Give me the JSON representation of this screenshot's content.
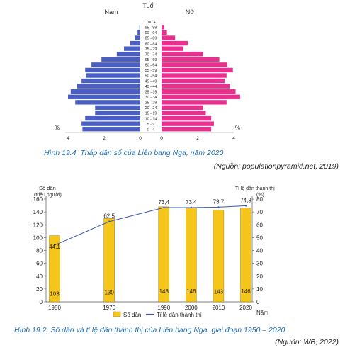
{
  "chart_data": [
    {
      "type": "bar",
      "subtype": "population-pyramid",
      "header_left": "Nam",
      "header_center": "Tuổi",
      "header_right": "Nữ",
      "unit_left": "%",
      "unit_right": "%",
      "categories": [
        "100+",
        "95-99",
        "90-94",
        "85-89",
        "80-84",
        "75-79",
        "70-74",
        "65-69",
        "60-64",
        "55-59",
        "50-54",
        "45-49",
        "40-44",
        "35-39",
        "30-34",
        "25-29",
        "20-24",
        "15-19",
        "10-14",
        "5-9",
        "0-4"
      ],
      "category_labels": [
        "100 +",
        "95 - 99",
        "90 - 94",
        "85 - 89",
        "80 - 84",
        "75 - 79",
        "70 - 74",
        "65 - 69",
        "60 - 64",
        "55 - 59",
        "50 - 54",
        "45 - 49",
        "40 - 44",
        "35 - 39",
        "30 - 34",
        "25 - 29",
        "20 - 24",
        "15 - 19",
        "10 - 14",
        "5 - 9",
        "0 - 4"
      ],
      "series": [
        {
          "name": "Nam",
          "color": "#4a5fc1",
          "values": [
            0.0,
            0.05,
            0.15,
            0.3,
            0.55,
            0.9,
            1.3,
            2.15,
            2.7,
            3.05,
            3.0,
            3.25,
            3.5,
            3.85,
            4.0,
            3.6,
            2.5,
            2.5,
            3.05,
            3.25,
            3.2
          ]
        },
        {
          "name": "Nữ",
          "color": "#e8308f",
          "values": [
            0.02,
            0.15,
            0.3,
            0.75,
            1.45,
            1.2,
            2.3,
            3.2,
            3.65,
            3.95,
            3.6,
            3.5,
            3.8,
            4.1,
            4.35,
            3.6,
            2.3,
            2.45,
            2.75,
            2.9,
            2.75
          ]
        }
      ],
      "xticks_left": [
        "4",
        "2",
        "0"
      ],
      "xticks_right": [
        "0",
        "2",
        "4"
      ],
      "xlim": [
        0,
        4.5
      ],
      "caption": "Hình 19.4. Tháp dân số của Liên bang Nga, năm 2020",
      "source": "(Nguồn: populationpyramid.net, 2019)"
    },
    {
      "type": "bar",
      "subtype": "bar-line-combo",
      "categories": [
        "1950",
        "1970",
        "1990",
        "2000",
        "2010",
        "2020"
      ],
      "x": [
        1950,
        1970,
        1990,
        2000,
        2010,
        2020
      ],
      "series": [
        {
          "name": "Số dân",
          "kind": "bar",
          "color": "#f5c51a",
          "values": [
            103,
            130,
            148,
            146,
            143,
            146
          ]
        },
        {
          "name": "Tỉ lệ dân thành thị",
          "kind": "line",
          "color": "#3b57b0",
          "values": [
            44.1,
            62.5,
            73.4,
            73.4,
            73.7,
            74.8
          ]
        }
      ],
      "bar_labels": [
        "103",
        "130",
        "148",
        "146",
        "143",
        "146"
      ],
      "line_labels": [
        "44,1",
        "62,5",
        "73,4",
        "73,4",
        "73,7",
        "74,8"
      ],
      "ylabel_left": [
        "Số dân",
        "(triệu người)"
      ],
      "ylabel_right": [
        "Tỉ lệ dân thành thị",
        "(%)"
      ],
      "xlabel": "Năm",
      "ylim_left": [
        0,
        160
      ],
      "ylim_right": [
        0,
        80
      ],
      "yticks_left": [
        0,
        20,
        40,
        60,
        80,
        100,
        120,
        140,
        160
      ],
      "yticks_right": [
        0,
        10,
        20,
        30,
        40,
        50,
        60,
        70,
        80
      ],
      "legend": [
        {
          "label": "Số dân",
          "kind": "bar"
        },
        {
          "label": "Tỉ lệ dân thành thị",
          "kind": "line"
        }
      ],
      "caption": "Hình 19.2. Số dân và tỉ lệ dân thành thị của Liên bang Nga, giai đoạn 1950 – 2020",
      "source": "(Nguồn: WB, 2022)"
    }
  ]
}
